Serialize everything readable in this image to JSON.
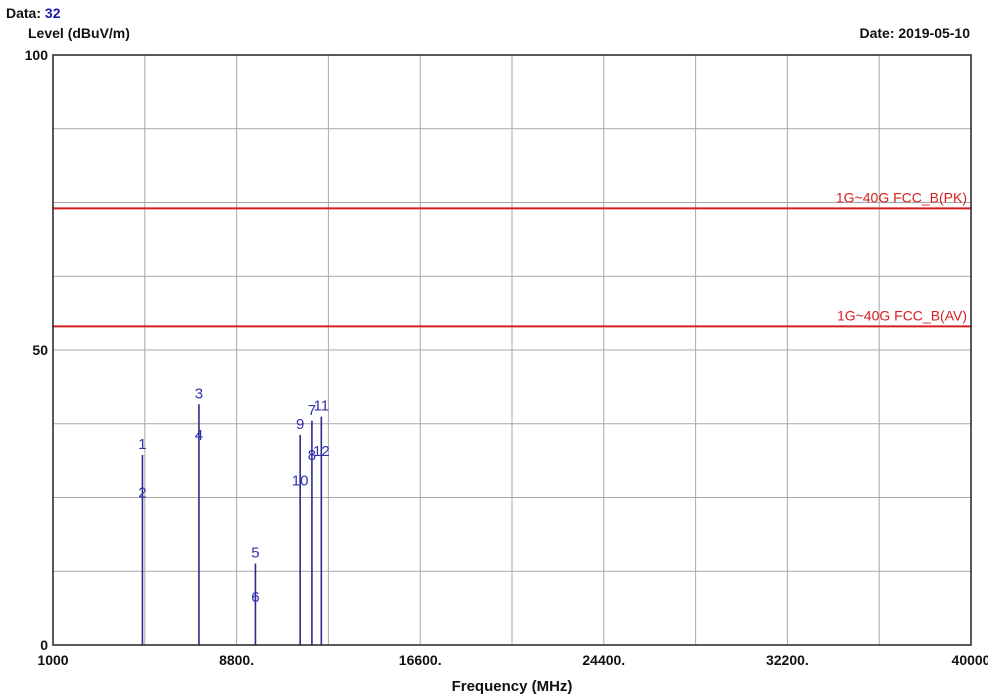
{
  "header": {
    "data_label": "Data:",
    "data_value": "32",
    "date_label": "Date: 2019-05-10"
  },
  "chart_data": {
    "type": "line",
    "ylabel": "Level (dBuV/m)",
    "xlabel": "Frequency (MHz)",
    "xlim": [
      1000,
      40000
    ],
    "ylim": [
      0,
      100
    ],
    "x_ticks": [
      1000,
      8800,
      16600,
      24400,
      32200,
      40000
    ],
    "x_tick_labels": [
      "1000",
      "8800.",
      "16600.",
      "24400.",
      "32200.",
      "40000"
    ],
    "y_tick_labels": [
      {
        "value": 100,
        "label": "100"
      },
      {
        "value": 50,
        "label": "50"
      },
      {
        "value": 0,
        "label": "0"
      }
    ],
    "grid": true,
    "limit_lines": [
      {
        "label": "1G~40G FCC_B(PK)",
        "value": 74,
        "color": "#d42020"
      },
      {
        "label": "1G~40G FCC_B(AV)",
        "value": 54,
        "color": "#d42020"
      }
    ],
    "series": [
      {
        "color": "#2b2b8a",
        "points": [
          {
            "label": "1",
            "x": 4800,
            "y": 32.2
          },
          {
            "label": "2",
            "x": 4800,
            "y": 24.0
          },
          {
            "label": "3",
            "x": 7200,
            "y": 40.8
          },
          {
            "label": "4",
            "x": 7200,
            "y": 33.7
          },
          {
            "label": "5",
            "x": 9600,
            "y": 13.8
          },
          {
            "label": "6",
            "x": 9600,
            "y": 6.3
          },
          {
            "label": "7",
            "x": 12000,
            "y": 38.0
          },
          {
            "label": "8",
            "x": 12000,
            "y": 30.3
          },
          {
            "label": "9",
            "x": 11500,
            "y": 35.6
          },
          {
            "label": "10",
            "x": 11500,
            "y": 26.0
          },
          {
            "label": "11",
            "x": 12400,
            "y": 38.7
          },
          {
            "label": "12",
            "x": 12400,
            "y": 31.0
          }
        ]
      }
    ]
  }
}
